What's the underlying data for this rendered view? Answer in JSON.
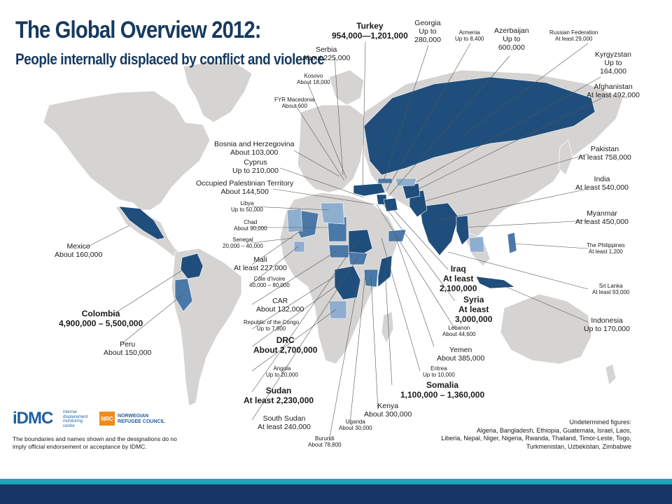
{
  "title": "The Global Overview 2012:",
  "subtitle": "People internally displaced by conflict and violence",
  "colors": {
    "dark": "#1f4e7c",
    "medium": "#4a78a8",
    "light": "#8eaed0",
    "land": "#d6d4d2",
    "sea": "#ffffff",
    "teal_band": "#1ea3b8",
    "navy_band": "#173668"
  },
  "labels": {
    "turkey": {
      "name": "Turkey",
      "value": "954,000—1,201,000"
    },
    "georgia": {
      "name": "Georgia",
      "value": "Up to",
      "value2": "280,000"
    },
    "armenia": {
      "name": "Armenia",
      "value": "Up to 8,400"
    },
    "azerbaijan": {
      "name": "Azerbaijan",
      "value": "Up to",
      "value2": "600,000"
    },
    "russia": {
      "name": "Russian Federation",
      "value": "At least 29,000"
    },
    "serbia": {
      "name": "Serbia",
      "value": "About 225,000"
    },
    "kyrgyzstan": {
      "name": "Kyrgyzstan",
      "value": "Up to",
      "value2": "164,000"
    },
    "kosovo": {
      "name": "Kosovo",
      "value": "About 18,000"
    },
    "afghanistan": {
      "name": "Afghanistan",
      "value": "At least 492,000"
    },
    "fyr_macedonia": {
      "name": "FYR Macedonia",
      "value": "About 600"
    },
    "bosnia": {
      "name": "Bosnia and Herzegovina",
      "value": "About 103,000"
    },
    "pakistan": {
      "name": "Pakistan",
      "value": "At least 758,000"
    },
    "cyprus": {
      "name": "Cyprus",
      "value": "Up to 210,000"
    },
    "opt": {
      "name": "Occupied Palestinian Territory",
      "value": "About 144,500"
    },
    "india": {
      "name": "India",
      "value": "At least 540,000"
    },
    "libya": {
      "name": "Libya",
      "value": "Up to 50,000"
    },
    "myanmar": {
      "name": "Myanmar",
      "value": "At least 450,000"
    },
    "chad": {
      "name": "Chad",
      "value": "About 90,000"
    },
    "senegal": {
      "name": "Senegal",
      "value": "20,000 – 40,000"
    },
    "philippines": {
      "name": "The Philippines",
      "value": "At least 1,200"
    },
    "mexico": {
      "name": "Mexico",
      "value": "About 160,000"
    },
    "mali": {
      "name": "Mali",
      "value": "At least 227,000"
    },
    "iraq": {
      "name": "Iraq",
      "value": "At least",
      "value2": "2,100,000"
    },
    "cote_divoire": {
      "name": "Côte d’Ivoire",
      "value": "40,000 – 80,000"
    },
    "sri_lanka": {
      "name": "Sri Lanka",
      "value": "At least 93,000"
    },
    "syria": {
      "name": "Syria",
      "value": "At least",
      "value2": "3,000,000"
    },
    "car": {
      "name": "CAR",
      "value": "About 132,000"
    },
    "colombia": {
      "name": "Colombia",
      "value": "4,900,000 – 5,500,000"
    },
    "indonesia": {
      "name": "Indonesia",
      "value": "Up to 170,000"
    },
    "lebanon": {
      "name": "Lebanon",
      "value": "About 44,600"
    },
    "congo": {
      "name": "Republic of the Congo",
      "value": "Up to 7,800"
    },
    "peru": {
      "name": "Peru",
      "value": "About 150,000"
    },
    "drc": {
      "name": "DRC",
      "value": "About 2,700,000"
    },
    "yemen": {
      "name": "Yemen",
      "value": "About 385,000"
    },
    "eritrea": {
      "name": "Eritrea",
      "value": "Up to 10,000"
    },
    "angola": {
      "name": "Angola",
      "value": "Up to 20,000"
    },
    "somalia": {
      "name": "Somalia",
      "value": "1,100,000 – 1,360,000"
    },
    "sudan": {
      "name": "Sudan",
      "value": "At least 2,230,000"
    },
    "kenya": {
      "name": "Kenya",
      "value": "About 300,000"
    },
    "south_sudan": {
      "name": "South Sudan",
      "value": "At least 240,000"
    },
    "uganda": {
      "name": "Uganda",
      "value": "About 30,000"
    },
    "burundi": {
      "name": "Burundi",
      "value": "About 78,800"
    }
  },
  "logos": {
    "idmc": "iDMC",
    "idmc_sub": "internal displacement monitoring centre",
    "nrc": "NRC",
    "nrc_text_1": "NORWEGIAN",
    "nrc_text_2": "REFUGEE COUNCIL"
  },
  "disclaimer": "The boundaries and names shown and the designations do no imply official endorsement or acceptance by IDMC.",
  "undetermined": {
    "title": "Undetermined figures:",
    "line1": "Algeria, Bangladesh, Ethiopia, Guatemala, Israel, Laos,",
    "line2": "Liberia, Nepal, Niger, Nigeria, Rwanda, Thailand, Timor-Leste, Togo,",
    "line3": "Turkmenistan, Uzbekistan, Zimbabwe"
  }
}
